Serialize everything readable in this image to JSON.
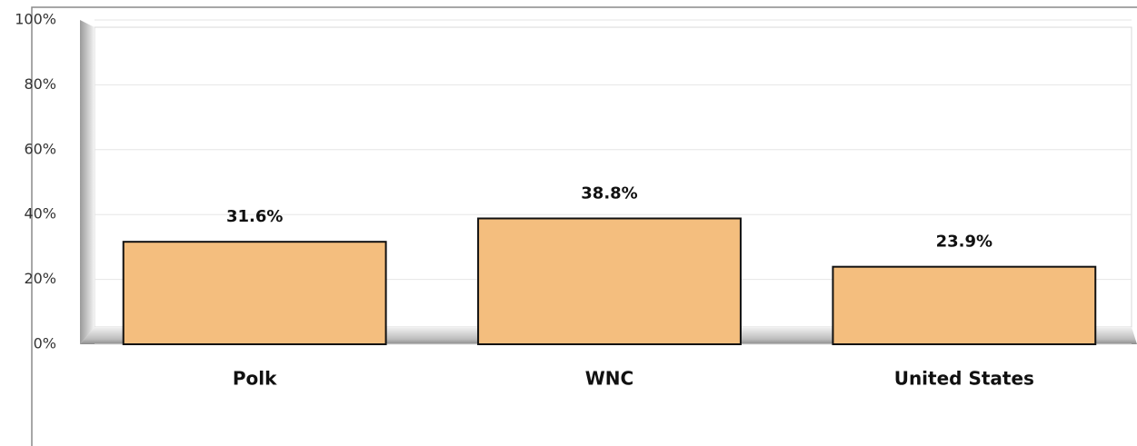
{
  "chart_data": {
    "type": "bar",
    "categories": [
      "Polk",
      "WNC",
      "United States"
    ],
    "values": [
      31.6,
      38.8,
      23.9
    ],
    "value_labels": [
      "31.6%",
      "38.8%",
      "23.9%"
    ],
    "color": "#f4be7e",
    "ylim": [
      0,
      100
    ],
    "yticks": [
      {
        "value": 0,
        "label": "0%"
      },
      {
        "value": 20,
        "label": "20%"
      },
      {
        "value": 40,
        "label": "40%"
      },
      {
        "value": 60,
        "label": "60%"
      },
      {
        "value": 80,
        "label": "80%"
      },
      {
        "value": 100,
        "label": "100%"
      }
    ],
    "grid": true
  }
}
